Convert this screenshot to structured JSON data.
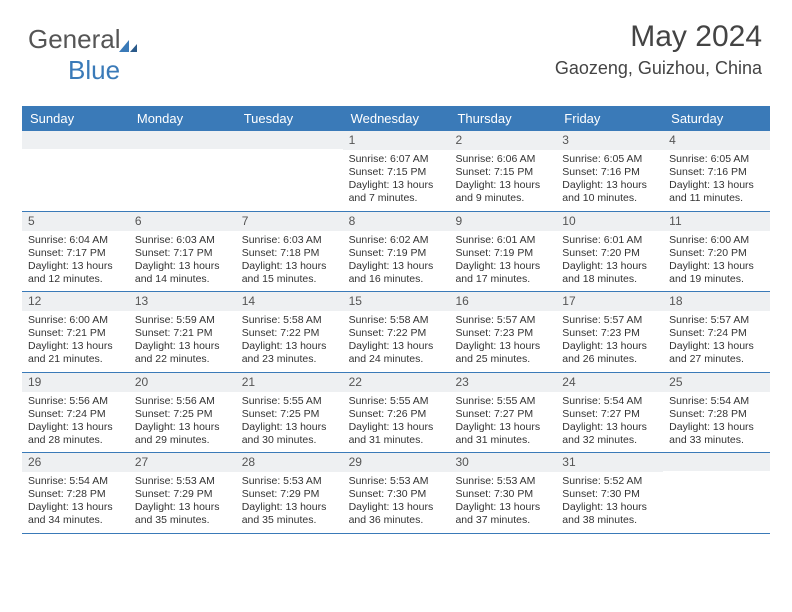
{
  "logo": {
    "part1": "General",
    "part2": "Blue"
  },
  "header": {
    "month_title": "May 2024",
    "location": "Gaozeng, Guizhou, China"
  },
  "colors": {
    "header_bg": "#3a7ab8",
    "header_text": "#ffffff",
    "daynum_bg": "#eef0f2",
    "daynum_text": "#555555",
    "body_text": "#333333",
    "border": "#3a7ab8"
  },
  "day_names": [
    "Sunday",
    "Monday",
    "Tuesday",
    "Wednesday",
    "Thursday",
    "Friday",
    "Saturday"
  ],
  "weeks": [
    [
      null,
      null,
      null,
      {
        "n": "1",
        "sunrise": "6:07 AM",
        "sunset": "7:15 PM",
        "daylight": "13 hours and 7 minutes."
      },
      {
        "n": "2",
        "sunrise": "6:06 AM",
        "sunset": "7:15 PM",
        "daylight": "13 hours and 9 minutes."
      },
      {
        "n": "3",
        "sunrise": "6:05 AM",
        "sunset": "7:16 PM",
        "daylight": "13 hours and 10 minutes."
      },
      {
        "n": "4",
        "sunrise": "6:05 AM",
        "sunset": "7:16 PM",
        "daylight": "13 hours and 11 minutes."
      }
    ],
    [
      {
        "n": "5",
        "sunrise": "6:04 AM",
        "sunset": "7:17 PM",
        "daylight": "13 hours and 12 minutes."
      },
      {
        "n": "6",
        "sunrise": "6:03 AM",
        "sunset": "7:17 PM",
        "daylight": "13 hours and 14 minutes."
      },
      {
        "n": "7",
        "sunrise": "6:03 AM",
        "sunset": "7:18 PM",
        "daylight": "13 hours and 15 minutes."
      },
      {
        "n": "8",
        "sunrise": "6:02 AM",
        "sunset": "7:19 PM",
        "daylight": "13 hours and 16 minutes."
      },
      {
        "n": "9",
        "sunrise": "6:01 AM",
        "sunset": "7:19 PM",
        "daylight": "13 hours and 17 minutes."
      },
      {
        "n": "10",
        "sunrise": "6:01 AM",
        "sunset": "7:20 PM",
        "daylight": "13 hours and 18 minutes."
      },
      {
        "n": "11",
        "sunrise": "6:00 AM",
        "sunset": "7:20 PM",
        "daylight": "13 hours and 19 minutes."
      }
    ],
    [
      {
        "n": "12",
        "sunrise": "6:00 AM",
        "sunset": "7:21 PM",
        "daylight": "13 hours and 21 minutes."
      },
      {
        "n": "13",
        "sunrise": "5:59 AM",
        "sunset": "7:21 PM",
        "daylight": "13 hours and 22 minutes."
      },
      {
        "n": "14",
        "sunrise": "5:58 AM",
        "sunset": "7:22 PM",
        "daylight": "13 hours and 23 minutes."
      },
      {
        "n": "15",
        "sunrise": "5:58 AM",
        "sunset": "7:22 PM",
        "daylight": "13 hours and 24 minutes."
      },
      {
        "n": "16",
        "sunrise": "5:57 AM",
        "sunset": "7:23 PM",
        "daylight": "13 hours and 25 minutes."
      },
      {
        "n": "17",
        "sunrise": "5:57 AM",
        "sunset": "7:23 PM",
        "daylight": "13 hours and 26 minutes."
      },
      {
        "n": "18",
        "sunrise": "5:57 AM",
        "sunset": "7:24 PM",
        "daylight": "13 hours and 27 minutes."
      }
    ],
    [
      {
        "n": "19",
        "sunrise": "5:56 AM",
        "sunset": "7:24 PM",
        "daylight": "13 hours and 28 minutes."
      },
      {
        "n": "20",
        "sunrise": "5:56 AM",
        "sunset": "7:25 PM",
        "daylight": "13 hours and 29 minutes."
      },
      {
        "n": "21",
        "sunrise": "5:55 AM",
        "sunset": "7:25 PM",
        "daylight": "13 hours and 30 minutes."
      },
      {
        "n": "22",
        "sunrise": "5:55 AM",
        "sunset": "7:26 PM",
        "daylight": "13 hours and 31 minutes."
      },
      {
        "n": "23",
        "sunrise": "5:55 AM",
        "sunset": "7:27 PM",
        "daylight": "13 hours and 31 minutes."
      },
      {
        "n": "24",
        "sunrise": "5:54 AM",
        "sunset": "7:27 PM",
        "daylight": "13 hours and 32 minutes."
      },
      {
        "n": "25",
        "sunrise": "5:54 AM",
        "sunset": "7:28 PM",
        "daylight": "13 hours and 33 minutes."
      }
    ],
    [
      {
        "n": "26",
        "sunrise": "5:54 AM",
        "sunset": "7:28 PM",
        "daylight": "13 hours and 34 minutes."
      },
      {
        "n": "27",
        "sunrise": "5:53 AM",
        "sunset": "7:29 PM",
        "daylight": "13 hours and 35 minutes."
      },
      {
        "n": "28",
        "sunrise": "5:53 AM",
        "sunset": "7:29 PM",
        "daylight": "13 hours and 35 minutes."
      },
      {
        "n": "29",
        "sunrise": "5:53 AM",
        "sunset": "7:30 PM",
        "daylight": "13 hours and 36 minutes."
      },
      {
        "n": "30",
        "sunrise": "5:53 AM",
        "sunset": "7:30 PM",
        "daylight": "13 hours and 37 minutes."
      },
      {
        "n": "31",
        "sunrise": "5:52 AM",
        "sunset": "7:30 PM",
        "daylight": "13 hours and 38 minutes."
      },
      null
    ]
  ],
  "labels": {
    "sunrise": "Sunrise:",
    "sunset": "Sunset:",
    "daylight": "Daylight:"
  }
}
